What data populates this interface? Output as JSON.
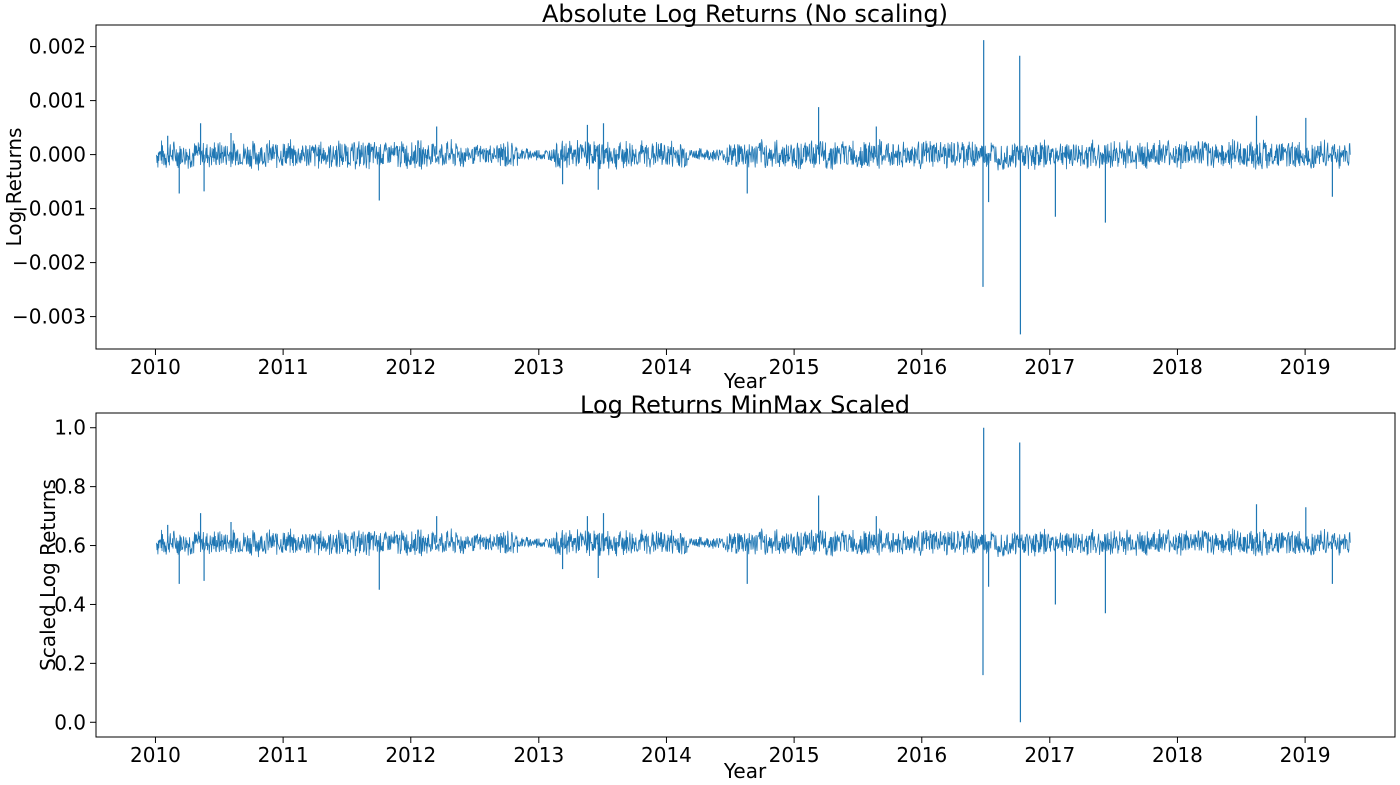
{
  "chart_data": [
    {
      "type": "line",
      "title": "Absolute Log Returns (No scaling)",
      "xlabel": "Year",
      "ylabel": "Log Returns",
      "xlim": [
        "2009-07-15",
        "2019-09-15"
      ],
      "ylim": [
        -0.0036,
        0.0024
      ],
      "xticks": [
        "2010",
        "2011",
        "2012",
        "2013",
        "2014",
        "2015",
        "2016",
        "2017",
        "2018",
        "2019"
      ],
      "yticks": [
        {
          "value": 0.002,
          "label": "0.002"
        },
        {
          "value": 0.001,
          "label": "0.001"
        },
        {
          "value": 0.0,
          "label": "0.000"
        },
        {
          "value": -0.001,
          "label": "−0.001"
        },
        {
          "value": -0.002,
          "label": "−0.002"
        },
        {
          "value": -0.003,
          "label": "−0.003"
        }
      ],
      "grid": false,
      "legend": "none",
      "line_color": "#1f77b4",
      "series": [
        {
          "baseline": 0.0,
          "x_range": [
            "2010-01-04",
            "2019-05-10"
          ],
          "typical_band": [
            -0.0003,
            0.0003
          ],
          "peaks": [
            {
              "x": "2010-02-05",
              "y": 0.00035
            },
            {
              "x": "2010-03-10",
              "y": -0.00072
            },
            {
              "x": "2010-05-10",
              "y": 0.00058
            },
            {
              "x": "2010-05-20",
              "y": -0.00068
            },
            {
              "x": "2010-08-05",
              "y": 0.0004
            },
            {
              "x": "2011-10-03",
              "y": -0.00085
            },
            {
              "x": "2012-03-15",
              "y": 0.00052
            },
            {
              "x": "2013-03-10",
              "y": -0.00055
            },
            {
              "x": "2013-05-20",
              "y": 0.00055
            },
            {
              "x": "2013-06-20",
              "y": -0.00065
            },
            {
              "x": "2013-07-05",
              "y": 0.00058
            },
            {
              "x": "2014-08-20",
              "y": -0.00072
            },
            {
              "x": "2015-03-12",
              "y": 0.00088
            },
            {
              "x": "2015-08-24",
              "y": 0.00052
            },
            {
              "x": "2016-06-24",
              "y": -0.00245
            },
            {
              "x": "2016-06-26",
              "y": 0.00212
            },
            {
              "x": "2016-07-10",
              "y": -0.00088
            },
            {
              "x": "2016-10-07",
              "y": 0.00183
            },
            {
              "x": "2016-10-09",
              "y": -0.00333
            },
            {
              "x": "2017-01-17",
              "y": -0.00115
            },
            {
              "x": "2017-06-09",
              "y": -0.00126
            },
            {
              "x": "2018-08-15",
              "y": 0.00072
            },
            {
              "x": "2019-01-03",
              "y": 0.00068
            },
            {
              "x": "2019-03-20",
              "y": -0.00078
            }
          ]
        }
      ]
    },
    {
      "type": "line",
      "title": "Log Returns MinMax Scaled",
      "xlabel": "Year",
      "ylabel": "Scaled Log Returns",
      "xlim": [
        "2009-07-15",
        "2019-09-15"
      ],
      "ylim": [
        -0.05,
        1.05
      ],
      "xticks": [
        "2010",
        "2011",
        "2012",
        "2013",
        "2014",
        "2015",
        "2016",
        "2017",
        "2018",
        "2019"
      ],
      "yticks": [
        {
          "value": 1.0,
          "label": "1.0"
        },
        {
          "value": 0.8,
          "label": "0.8"
        },
        {
          "value": 0.6,
          "label": "0.6"
        },
        {
          "value": 0.4,
          "label": "0.4"
        },
        {
          "value": 0.2,
          "label": "0.2"
        },
        {
          "value": 0.0,
          "label": "0.0"
        }
      ],
      "grid": false,
      "legend": "none",
      "line_color": "#1f77b4",
      "series": [
        {
          "baseline": 0.61,
          "x_range": [
            "2010-01-04",
            "2019-05-10"
          ],
          "typical_band": [
            0.56,
            0.66
          ],
          "peaks": [
            {
              "x": "2010-02-05",
              "y": 0.67
            },
            {
              "x": "2010-03-10",
              "y": 0.47
            },
            {
              "x": "2010-05-10",
              "y": 0.71
            },
            {
              "x": "2010-05-20",
              "y": 0.48
            },
            {
              "x": "2010-08-05",
              "y": 0.68
            },
            {
              "x": "2011-10-03",
              "y": 0.45
            },
            {
              "x": "2012-03-15",
              "y": 0.7
            },
            {
              "x": "2013-03-10",
              "y": 0.52
            },
            {
              "x": "2013-05-20",
              "y": 0.7
            },
            {
              "x": "2013-06-20",
              "y": 0.49
            },
            {
              "x": "2013-07-05",
              "y": 0.71
            },
            {
              "x": "2014-08-20",
              "y": 0.47
            },
            {
              "x": "2015-03-12",
              "y": 0.77
            },
            {
              "x": "2015-08-24",
              "y": 0.7
            },
            {
              "x": "2016-06-24",
              "y": 0.16
            },
            {
              "x": "2016-06-26",
              "y": 1.0
            },
            {
              "x": "2016-07-10",
              "y": 0.46
            },
            {
              "x": "2016-10-07",
              "y": 0.95
            },
            {
              "x": "2016-10-09",
              "y": 0.0
            },
            {
              "x": "2017-01-17",
              "y": 0.4
            },
            {
              "x": "2017-06-09",
              "y": 0.37
            },
            {
              "x": "2018-08-15",
              "y": 0.74
            },
            {
              "x": "2019-01-03",
              "y": 0.73
            },
            {
              "x": "2019-03-20",
              "y": 0.47
            }
          ]
        }
      ]
    }
  ]
}
